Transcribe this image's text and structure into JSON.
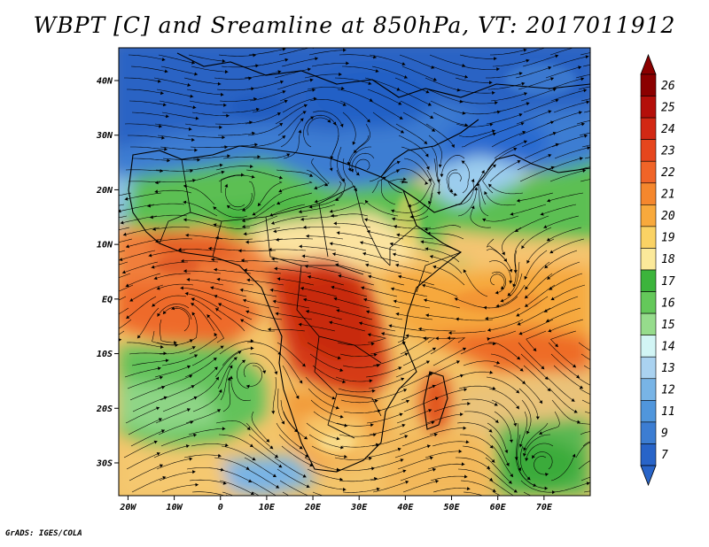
{
  "title": "WBPT [C] and Sreamline at 850hPa, VT: 2017011912",
  "credit": "GrADS: IGES/COLA",
  "map": {
    "lon_range": [
      -22,
      80
    ],
    "lat_range": [
      -36,
      46
    ],
    "lat_ticks": [
      {
        "value": 40,
        "label": "40N"
      },
      {
        "value": 30,
        "label": "30N"
      },
      {
        "value": 20,
        "label": "20N"
      },
      {
        "value": 10,
        "label": "10N"
      },
      {
        "value": 0,
        "label": "EQ"
      },
      {
        "value": -10,
        "label": "10S"
      },
      {
        "value": -20,
        "label": "20S"
      },
      {
        "value": -30,
        "label": "30S"
      }
    ],
    "lon_ticks": [
      {
        "value": -20,
        "label": "20W"
      },
      {
        "value": -10,
        "label": "10W"
      },
      {
        "value": 0,
        "label": "0"
      },
      {
        "value": 10,
        "label": "10E"
      },
      {
        "value": 20,
        "label": "20E"
      },
      {
        "value": 30,
        "label": "30E"
      },
      {
        "value": 40,
        "label": "40E"
      },
      {
        "value": 50,
        "label": "50E"
      },
      {
        "value": 60,
        "label": "60E"
      },
      {
        "value": 70,
        "label": "70E"
      }
    ],
    "streamline_flow_note_cells": "streamlines"
  },
  "colorbar": {
    "labels": [
      "26",
      "25",
      "24",
      "23",
      "22",
      "21",
      "20",
      "19",
      "18",
      "17",
      "16",
      "15",
      "14",
      "13",
      "12",
      "11",
      "9",
      "7"
    ],
    "colors": [
      "#8b0000",
      "#b40f0a",
      "#d22814",
      "#e6461e",
      "#f06428",
      "#f5872d",
      "#f8a93c",
      "#fad264",
      "#fbe99a",
      "#3cb43c",
      "#64c85a",
      "#96dc8c",
      "#d2f5f5",
      "#aad2f0",
      "#78b4e6",
      "#5096dc",
      "#3c7dd2",
      "#2864c8"
    ],
    "top_cap_color": "#8b0000",
    "bottom_cap_color": "#2864c8"
  }
}
